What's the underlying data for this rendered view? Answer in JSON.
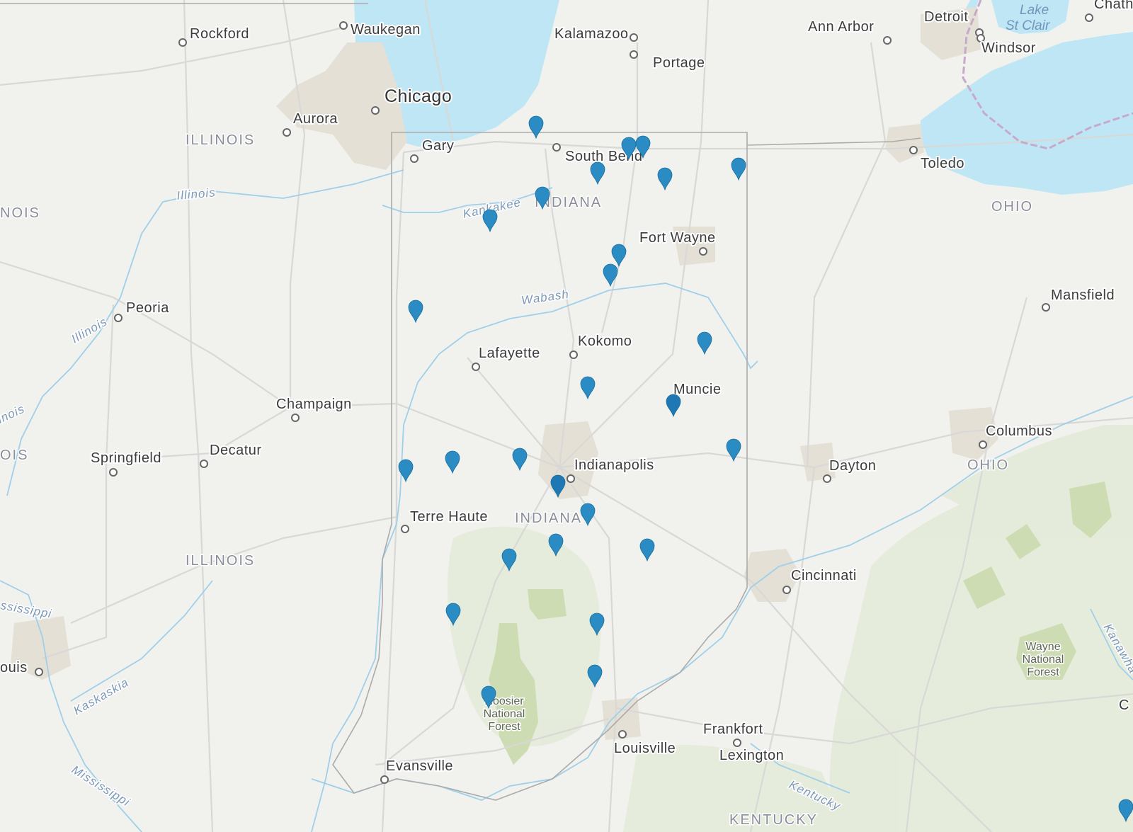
{
  "map": {
    "cities": [
      {
        "name": "Rockford",
        "big": false
      },
      {
        "name": "Waukegan",
        "big": false
      },
      {
        "name": "Kalamazoo",
        "big": false
      },
      {
        "name": "Portage",
        "big": false
      },
      {
        "name": "Ann Arbor",
        "big": false
      },
      {
        "name": "Detroit",
        "big": false
      },
      {
        "name": "Windsor",
        "big": false
      },
      {
        "name": "Chath",
        "big": false
      },
      {
        "name": "Chicago",
        "big": true
      },
      {
        "name": "Aurora",
        "big": false
      },
      {
        "name": "Gary",
        "big": false
      },
      {
        "name": "South Bend",
        "big": false
      },
      {
        "name": "Toledo",
        "big": false
      },
      {
        "name": "Fort Wayne",
        "big": false
      },
      {
        "name": "Peoria",
        "big": false
      },
      {
        "name": "Mansfield",
        "big": false
      },
      {
        "name": "Lafayette",
        "big": false
      },
      {
        "name": "Kokomo",
        "big": false
      },
      {
        "name": "Muncie",
        "big": false
      },
      {
        "name": "Champaign",
        "big": false
      },
      {
        "name": "Columbus",
        "big": false
      },
      {
        "name": "Springfield",
        "big": false
      },
      {
        "name": "Decatur",
        "big": false
      },
      {
        "name": "Indianapolis",
        "big": false
      },
      {
        "name": "Dayton",
        "big": false
      },
      {
        "name": "Terre Haute",
        "big": false
      },
      {
        "name": "Cincinnati",
        "big": false
      },
      {
        "name": "ouis",
        "big": false
      },
      {
        "name": "Louisville",
        "big": false
      },
      {
        "name": "Frankfort",
        "big": false
      },
      {
        "name": "Lexington",
        "big": false
      },
      {
        "name": "Evansville",
        "big": false
      },
      {
        "name": "C",
        "big": false
      }
    ],
    "states": [
      "ILLINOIS",
      "NOIS",
      "INDIANA",
      "OHIO",
      "OIS",
      "ILLINOIS",
      "INDIANA",
      "OHIO",
      "KENTUCKY"
    ],
    "rivers": [
      "Illinois",
      "Kankakee",
      "Wabash",
      "Illinois",
      "inois",
      "ssissippi",
      "Kaskaskia",
      "Mississippi",
      "Kentucky",
      "Kanawha"
    ],
    "lakes": [
      [
        "Lake",
        "St Clair"
      ]
    ],
    "parks": [
      {
        "lines": [
          "Hoosier",
          "National",
          "Forest"
        ]
      },
      {
        "lines": [
          "Wayne",
          "National",
          "Forest"
        ]
      }
    ],
    "markers": [
      {
        "id": 1,
        "color": "#2b8cc4"
      },
      {
        "id": 2,
        "color": "#2b8cc4"
      },
      {
        "id": 3,
        "color": "#2b8cc4"
      },
      {
        "id": 4,
        "color": "#2b8cc4"
      },
      {
        "id": 5,
        "color": "#2b8cc4"
      },
      {
        "id": 6,
        "color": "#2b8cc4"
      },
      {
        "id": 7,
        "color": "#2b8cc4"
      },
      {
        "id": 8,
        "color": "#2b8cc4"
      },
      {
        "id": 9,
        "color": "#2b8cc4"
      },
      {
        "id": 10,
        "color": "#2b8cc4"
      },
      {
        "id": 11,
        "color": "#2b8cc4"
      },
      {
        "id": 12,
        "color": "#2b8cc4"
      },
      {
        "id": 13,
        "color": "#1f78b4"
      },
      {
        "id": 14,
        "color": "#2b8cc4"
      },
      {
        "id": 15,
        "color": "#2b8cc4"
      },
      {
        "id": 16,
        "color": "#2b8cc4"
      },
      {
        "id": 17,
        "color": "#2b8cc4"
      },
      {
        "id": 18,
        "color": "#2b8cc4"
      },
      {
        "id": 19,
        "color": "#1f78b4"
      },
      {
        "id": 20,
        "color": "#2b8cc4"
      },
      {
        "id": 21,
        "color": "#2b8cc4"
      },
      {
        "id": 22,
        "color": "#2b8cc4"
      },
      {
        "id": 23,
        "color": "#2b8cc4"
      },
      {
        "id": 24,
        "color": "#2b8cc4"
      },
      {
        "id": 25,
        "color": "#2b8cc4"
      },
      {
        "id": 26,
        "color": "#2b8cc4"
      },
      {
        "id": 27,
        "color": "#2b8cc4"
      },
      {
        "id": 28,
        "color": "#2b8cc4"
      },
      {
        "id": 29,
        "color": "#2b8cc4"
      }
    ],
    "colors": {
      "land": "#f1f1ee",
      "water": "#bfe6f5",
      "forest": "#dfe8cf",
      "park": "#c9d9ad",
      "border": "#a9a9a9",
      "road": "#dadada",
      "river": "#9fd0ea",
      "urban": "#e2dfd6",
      "marker": "#2b8cc4"
    }
  }
}
